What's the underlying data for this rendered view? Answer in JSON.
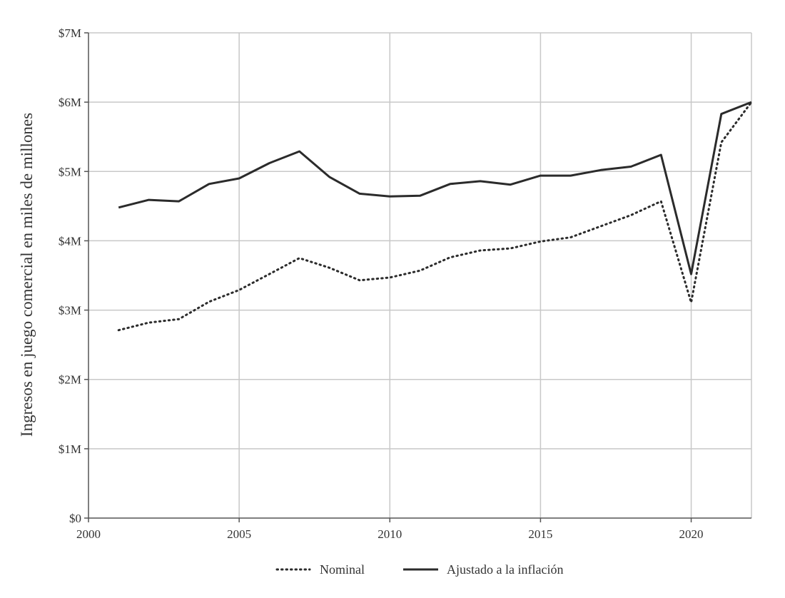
{
  "chart_data": {
    "type": "line",
    "title": "",
    "xlabel": "",
    "ylabel": "Ingresos en juego comercial en miles de millones",
    "xlim": [
      2000,
      2022
    ],
    "ylim": [
      0,
      7
    ],
    "x_ticks": [
      2000,
      2005,
      2010,
      2015,
      2020
    ],
    "x_tick_labels": [
      "2000",
      "2005",
      "2010",
      "2015",
      "2020"
    ],
    "y_ticks": [
      0,
      1,
      2,
      3,
      4,
      5,
      6,
      7
    ],
    "y_tick_labels": [
      "$0",
      "$1M",
      "$2M",
      "$3M",
      "$4M",
      "$5M",
      "$6M",
      "$7M"
    ],
    "grid": true,
    "legend_position": "bottom",
    "x": [
      2001,
      2002,
      2003,
      2004,
      2005,
      2006,
      2007,
      2008,
      2009,
      2010,
      2011,
      2012,
      2013,
      2014,
      2015,
      2016,
      2017,
      2018,
      2019,
      2020,
      2021,
      2022
    ],
    "series": [
      {
        "name": "Nominal",
        "style": "dotted",
        "color": "#2b2b2b",
        "values": [
          2.71,
          2.82,
          2.87,
          3.12,
          3.29,
          3.52,
          3.75,
          3.61,
          3.43,
          3.47,
          3.57,
          3.76,
          3.86,
          3.89,
          3.99,
          4.05,
          4.21,
          4.37,
          4.57,
          3.11,
          5.42,
          6.0
        ]
      },
      {
        "name": "Ajustado a la inflación",
        "style": "solid",
        "color": "#2b2b2b",
        "values": [
          4.48,
          4.59,
          4.57,
          4.82,
          4.9,
          5.12,
          5.29,
          4.92,
          4.68,
          4.64,
          4.65,
          4.82,
          4.86,
          4.81,
          4.94,
          4.94,
          5.02,
          5.07,
          5.24,
          3.52,
          5.83,
          6.0
        ]
      }
    ]
  }
}
